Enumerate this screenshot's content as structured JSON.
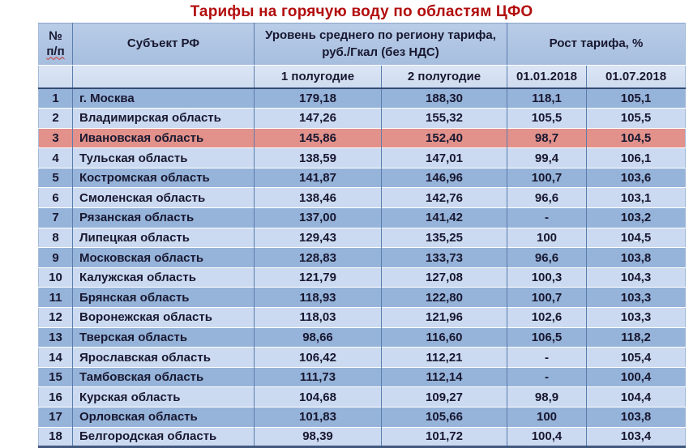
{
  "title": "Тарифы на горячую воду по областям ЦФО",
  "colors": {
    "title_text": "#b30d0d",
    "header_bg": "#aec4e3",
    "subheader_bg": "#d4e0f1",
    "row_dark": "#96b3da",
    "row_light": "#cbdaf0",
    "highlight_row": "#e2918b",
    "divider": "#5b7dad",
    "heavy_line": "#344b73",
    "text": "#181830",
    "misspell_underline": "#cc3333"
  },
  "table": {
    "header_num_line1": "№",
    "header_num_line2": "п/п",
    "header_subject": "Субъект РФ",
    "header_tariff_group": "Уровень среднего по региону тарифа, руб./Гкал (без НДС)",
    "header_growth_group": "Рост тарифа, %",
    "subheaders": [
      "1 полугодие",
      "2 полугодие",
      "01.01.2018",
      "01.07.2018"
    ]
  },
  "chart_data": {
    "type": "table",
    "title": "Тарифы на горячую воду по областям ЦФО",
    "columns": [
      "№ п/п",
      "Субъект РФ",
      "Уровень среднего по региону тарифа, руб./Гкал (без НДС) — 1 полугодие",
      "Уровень среднего по региону тарифа, руб./Гкал (без НДС) — 2 полугодие",
      "Рост тарифа, % — 01.01.2018",
      "Рост тарифа, % — 01.07.2018"
    ],
    "highlighted_region": "Ивановская область",
    "rows": [
      {
        "num": "1",
        "region": "г. Москва",
        "half1": "179,18",
        "half2": "188,30",
        "growth1": "118,1",
        "growth2": "105,1",
        "highlight": false
      },
      {
        "num": "2",
        "region": "Владимирская область",
        "half1": "147,26",
        "half2": "155,32",
        "growth1": "105,5",
        "growth2": "105,5",
        "highlight": false
      },
      {
        "num": "3",
        "region": "Ивановская область",
        "half1": "145,86",
        "half2": "152,40",
        "growth1": "98,7",
        "growth2": "104,5",
        "highlight": true
      },
      {
        "num": "4",
        "region": "Тульская область",
        "half1": "138,59",
        "half2": "147,01",
        "growth1": "99,4",
        "growth2": "106,1",
        "highlight": false
      },
      {
        "num": "5",
        "region": "Костромская область",
        "half1": "141,87",
        "half2": "146,96",
        "growth1": "100,7",
        "growth2": "103,6",
        "highlight": false
      },
      {
        "num": "6",
        "region": "Смоленская область",
        "half1": "138,46",
        "half2": "142,76",
        "growth1": "96,6",
        "growth2": "103,1",
        "highlight": false
      },
      {
        "num": "7",
        "region": "Рязанская область",
        "half1": "137,00",
        "half2": "141,42",
        "growth1": "-",
        "growth2": "103,2",
        "highlight": false
      },
      {
        "num": "8",
        "region": "Липецкая область",
        "half1": "129,43",
        "half2": "135,25",
        "growth1": "100",
        "growth2": "104,5",
        "highlight": false
      },
      {
        "num": "9",
        "region": "Московская область",
        "half1": "128,83",
        "half2": "133,73",
        "growth1": "96,6",
        "growth2": "103,8",
        "highlight": false
      },
      {
        "num": "10",
        "region": "Калужская область",
        "half1": "121,79",
        "half2": "127,08",
        "growth1": "100,3",
        "growth2": "104,3",
        "highlight": false
      },
      {
        "num": "11",
        "region": "Брянская область",
        "half1": "118,93",
        "half2": "122,80",
        "growth1": "100,7",
        "growth2": "103,3",
        "highlight": false
      },
      {
        "num": "12",
        "region": "Воронежская область",
        "half1": "118,03",
        "half2": "121,96",
        "growth1": "102,6",
        "growth2": "103,3",
        "highlight": false
      },
      {
        "num": "13",
        "region": "Тверская область",
        "half1": "98,66",
        "half2": "116,60",
        "growth1": "106,5",
        "growth2": "118,2",
        "highlight": false
      },
      {
        "num": "14",
        "region": "Ярославская область",
        "half1": "106,42",
        "half2": "112,21",
        "growth1": "-",
        "growth2": "105,4",
        "highlight": false
      },
      {
        "num": "15",
        "region": "Тамбовская область",
        "half1": "111,73",
        "half2": "112,14",
        "growth1": "-",
        "growth2": "100,4",
        "highlight": false
      },
      {
        "num": "16",
        "region": "Курская область",
        "half1": "104,68",
        "half2": "109,27",
        "growth1": "98,9",
        "growth2": "104,4",
        "highlight": false
      },
      {
        "num": "17",
        "region": "Орловская область",
        "half1": "101,83",
        "half2": "105,66",
        "growth1": "100",
        "growth2": "103,8",
        "highlight": false
      },
      {
        "num": "18",
        "region": "Белгородская область",
        "half1": "98,39",
        "half2": "101,72",
        "growth1": "100,4",
        "growth2": "103,4",
        "highlight": false
      }
    ]
  }
}
